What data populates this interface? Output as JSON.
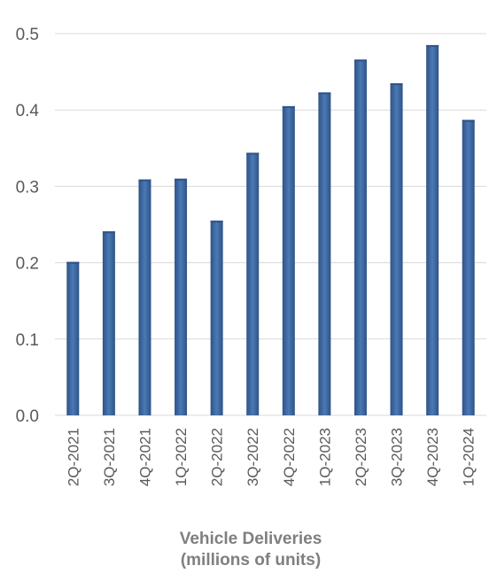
{
  "chart_data": {
    "type": "bar",
    "title_lines": [
      "Vehicle Deliveries",
      "(millions of units)"
    ],
    "xlabel": "",
    "ylabel": "",
    "categories": [
      "2Q-2021",
      "3Q-2021",
      "4Q-2021",
      "1Q-2022",
      "2Q-2022",
      "3Q-2022",
      "4Q-2022",
      "1Q-2023",
      "2Q-2023",
      "3Q-2023",
      "4Q-2023",
      "1Q-2024"
    ],
    "values": [
      0.201,
      0.241,
      0.309,
      0.31,
      0.255,
      0.344,
      0.405,
      0.423,
      0.466,
      0.435,
      0.485,
      0.387
    ],
    "ylim": [
      0,
      0.5
    ],
    "yticks": [
      "0.0",
      "0.1",
      "0.2",
      "0.3",
      "0.4",
      "0.5"
    ],
    "grid": true,
    "legend": "none",
    "colors": {
      "bar_light": "#4a79b5",
      "bar_dark": "#2f5386",
      "grid": "#d9d9d9",
      "text": "#595959",
      "title": "#7f7f7f"
    }
  }
}
